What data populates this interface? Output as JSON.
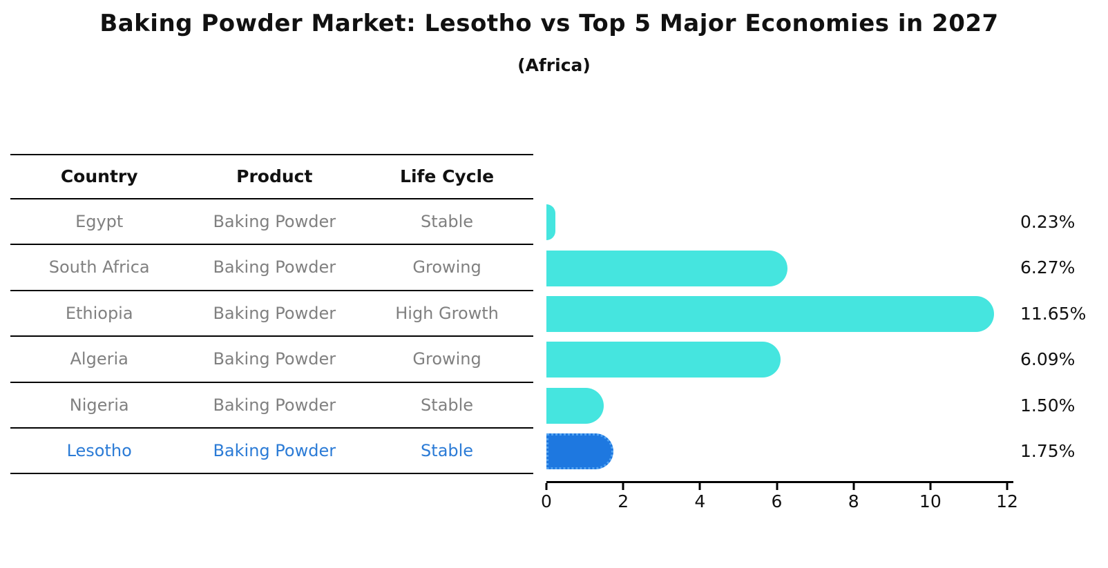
{
  "title": "Baking Powder Market: Lesotho vs Top 5 Major Economies in 2027",
  "subtitle": "(Africa)",
  "table": {
    "headers": [
      "Country",
      "Product",
      "Life Cycle"
    ],
    "rows": [
      {
        "country": "Egypt",
        "product": "Baking Powder",
        "life_cycle": "Stable",
        "highlight": false
      },
      {
        "country": "South Africa",
        "product": "Baking Powder",
        "life_cycle": "Growing",
        "highlight": false
      },
      {
        "country": "Ethiopia",
        "product": "Baking Powder",
        "life_cycle": "High Growth",
        "highlight": false
      },
      {
        "country": "Algeria",
        "product": "Baking Powder",
        "life_cycle": "Growing",
        "highlight": false
      },
      {
        "country": "Nigeria",
        "product": "Baking Powder",
        "life_cycle": "Stable",
        "highlight": false
      },
      {
        "country": "Lesotho",
        "product": "Baking Powder",
        "life_cycle": "Stable",
        "highlight": true
      }
    ]
  },
  "chart_data": {
    "type": "bar",
    "orientation": "horizontal",
    "title": "Baking Powder Market: Lesotho vs Top 5 Major Economies in 2027",
    "subtitle": "(Africa)",
    "categories": [
      "Egypt",
      "South Africa",
      "Ethiopia",
      "Algeria",
      "Nigeria",
      "Lesotho"
    ],
    "values": [
      0.23,
      6.27,
      11.65,
      6.09,
      1.5,
      1.75
    ],
    "value_labels": [
      "0.23%",
      "6.27%",
      "11.65%",
      "6.09%",
      "1.50%",
      "1.75%"
    ],
    "xlabel": "",
    "ylabel": "",
    "xlim": [
      0,
      12
    ],
    "xticks": [
      0,
      2,
      4,
      6,
      8,
      10,
      12
    ],
    "grid": false,
    "legend": false,
    "highlight_index": 5
  },
  "colors": {
    "bar": "#45E5DF",
    "highlight_bar": "#1E78E0",
    "highlight_border": "#54A4F2",
    "highlight_text": "#2B7BD6",
    "row_text": "#808080",
    "axis": "#000000",
    "text": "#111111"
  }
}
